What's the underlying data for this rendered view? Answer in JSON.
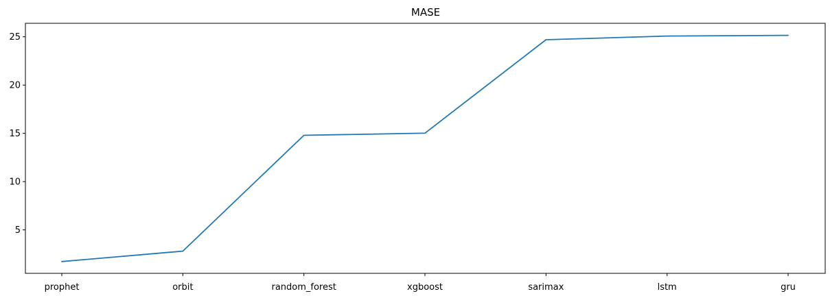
{
  "chart_data": {
    "type": "line",
    "title": "MASE",
    "xlabel": "",
    "ylabel": "",
    "categories": [
      "prophet",
      "orbit",
      "random_forest",
      "xgboost",
      "sarimax",
      "lstm",
      "gru"
    ],
    "series": [
      {
        "name": "MASE",
        "values": [
          1.72,
          2.8,
          14.8,
          15.02,
          24.7,
          25.08,
          25.15
        ],
        "color": "#1f77b4"
      }
    ],
    "ylim": [
      0.5,
      26.4
    ],
    "yticks": [
      5,
      10,
      15,
      20,
      25
    ],
    "grid": false,
    "legend": "none"
  }
}
